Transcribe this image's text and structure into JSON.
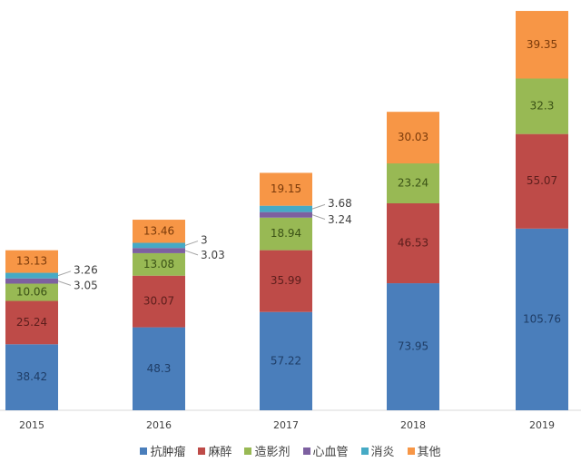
{
  "chart_data": {
    "type": "bar",
    "stacked": true,
    "categories": [
      "2015",
      "2016",
      "2017",
      "2018",
      "2019"
    ],
    "series": [
      {
        "name": "抗肿瘤",
        "color": "#4a7ebb",
        "values": [
          38.42,
          48.3,
          57.22,
          73.95,
          105.76
        ]
      },
      {
        "name": "麻醉",
        "color": "#be4b48",
        "values": [
          25.24,
          30.07,
          35.99,
          46.53,
          55.07
        ]
      },
      {
        "name": "造影剂",
        "color": "#98b954",
        "values": [
          10.06,
          13.08,
          18.94,
          23.24,
          32.3
        ]
      },
      {
        "name": "心血管",
        "color": "#7d60a0",
        "values": [
          3.05,
          3.03,
          3.24,
          null,
          null
        ]
      },
      {
        "name": "消炎",
        "color": "#46aac5",
        "values": [
          3.26,
          3,
          3.68,
          null,
          null
        ]
      },
      {
        "name": "其他",
        "color": "#f79646",
        "values": [
          13.13,
          13.46,
          19.15,
          30.03,
          39.35
        ]
      }
    ],
    "ylim": [
      0,
      232.5
    ],
    "grid": false,
    "legend": "bottom",
    "data_labels": true
  }
}
